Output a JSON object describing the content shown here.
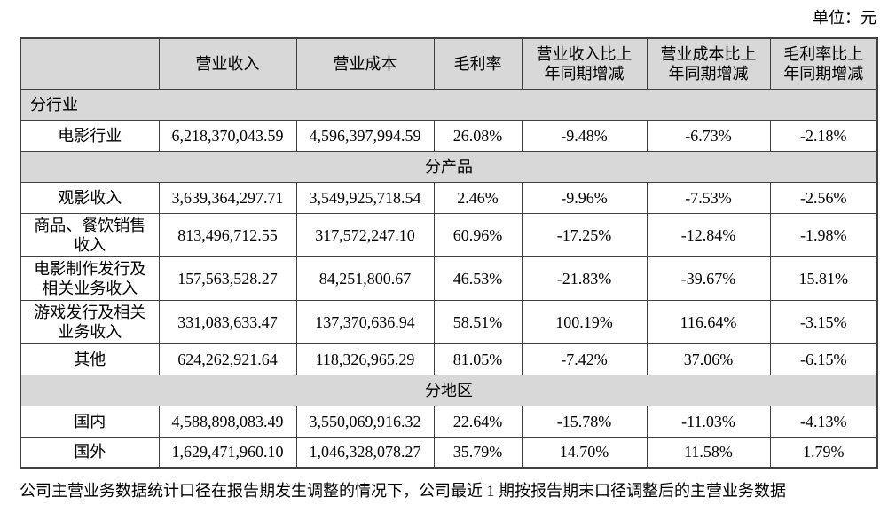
{
  "page": {
    "unit_label": "单位：元",
    "footer_note": "公司主营业务数据统计口径在报告期发生调整的情况下，公司最近 1 期按报告期末口径调整后的主营业务数据"
  },
  "colors": {
    "section_and_header_bg": "#d8d8d8",
    "border": "#404040",
    "text": "#000000",
    "page_bg": "#ffffff"
  },
  "table": {
    "headers": [
      "",
      "营业收入",
      "营业成本",
      "毛利率",
      "营业收入比上\n年同期增减",
      "营业成本比上\n年同期增减",
      "毛利率比上\n年同期增减"
    ],
    "column_keys": [
      "revenue",
      "cost",
      "gross_margin",
      "revenue_yoy_change",
      "cost_yoy_change",
      "margin_yoy_change"
    ],
    "sections": [
      {
        "title": "分行业",
        "title_align": "left",
        "rows": [
          {
            "label": "电影行业",
            "revenue": "6,218,370,043.59",
            "cost": "4,596,397,994.59",
            "gross_margin": "26.08%",
            "revenue_yoy_change": "-9.48%",
            "cost_yoy_change": "-6.73%",
            "margin_yoy_change": "-2.18%"
          }
        ]
      },
      {
        "title": "分产品",
        "title_align": "center",
        "rows": [
          {
            "label": "观影收入",
            "revenue": "3,639,364,297.71",
            "cost": "3,549,925,718.54",
            "gross_margin": "2.46%",
            "revenue_yoy_change": "-9.96%",
            "cost_yoy_change": "-7.53%",
            "margin_yoy_change": "-2.56%"
          },
          {
            "label": "商品、餐饮销售\n收入",
            "revenue": "813,496,712.55",
            "cost": "317,572,247.10",
            "gross_margin": "60.96%",
            "revenue_yoy_change": "-17.25%",
            "cost_yoy_change": "-12.84%",
            "margin_yoy_change": "-1.98%"
          },
          {
            "label": "电影制作发行及\n相关业务收入",
            "revenue": "157,563,528.27",
            "cost": "84,251,800.67",
            "gross_margin": "46.53%",
            "revenue_yoy_change": "-21.83%",
            "cost_yoy_change": "-39.67%",
            "margin_yoy_change": "15.81%"
          },
          {
            "label": "游戏发行及相关\n业务收入",
            "revenue": "331,083,633.47",
            "cost": "137,370,636.94",
            "gross_margin": "58.51%",
            "revenue_yoy_change": "100.19%",
            "cost_yoy_change": "116.64%",
            "margin_yoy_change": "-3.15%"
          },
          {
            "label": "其他",
            "revenue": "624,262,921.64",
            "cost": "118,326,965.29",
            "gross_margin": "81.05%",
            "revenue_yoy_change": "-7.42%",
            "cost_yoy_change": "37.06%",
            "margin_yoy_change": "-6.15%"
          }
        ]
      },
      {
        "title": "分地区",
        "title_align": "center",
        "rows": [
          {
            "label": "国内",
            "revenue": "4,588,898,083.49",
            "cost": "3,550,069,916.32",
            "gross_margin": "22.64%",
            "revenue_yoy_change": "-15.78%",
            "cost_yoy_change": "-11.03%",
            "margin_yoy_change": "-4.13%"
          },
          {
            "label": "国外",
            "revenue": "1,629,471,960.10",
            "cost": "1,046,328,078.27",
            "gross_margin": "35.79%",
            "revenue_yoy_change": "14.70%",
            "cost_yoy_change": "11.58%",
            "margin_yoy_change": "1.79%"
          }
        ]
      }
    ]
  }
}
